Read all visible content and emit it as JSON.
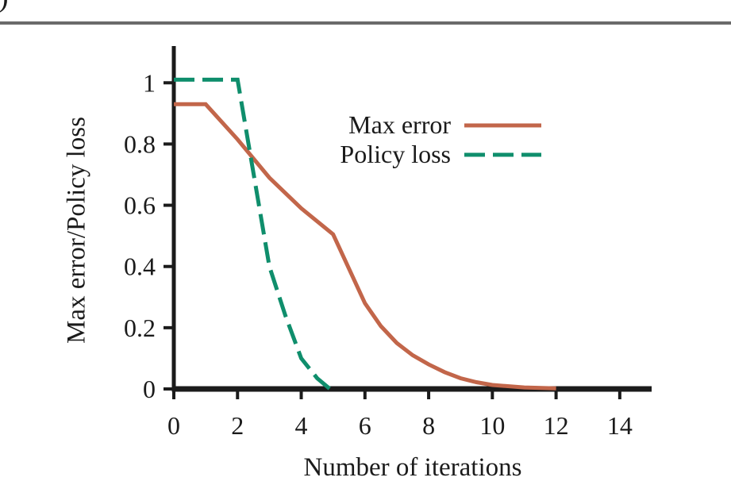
{
  "page": {
    "corner_fragment": ")",
    "colors": {
      "top_rule": "#6a6a6a",
      "axis": "#1b1b1b",
      "text": "#1b1b1b",
      "max_error_line": "#c2664a",
      "policy_loss_line": "#0f8e6c",
      "background": "#ffffff"
    }
  },
  "chart_data": {
    "type": "line",
    "title": "",
    "xlabel": "Number of iterations",
    "ylabel": "Max error/Policy loss",
    "xlim": [
      0,
      15
    ],
    "ylim": [
      0,
      1.12
    ],
    "x_ticks": [
      0,
      2,
      4,
      6,
      8,
      10,
      12,
      14
    ],
    "y_ticks": [
      0,
      0.2,
      0.4,
      0.6,
      0.8,
      1
    ],
    "y_tick_labels": [
      "0",
      "0.2",
      "0.4",
      "0.6",
      "0.8",
      "1"
    ],
    "grid": false,
    "legend_position": "upper-right-inside",
    "series": [
      {
        "name": "Max error",
        "style": "solid",
        "color": "#c2664a",
        "points": [
          [
            0,
            0.93
          ],
          [
            1,
            0.93
          ],
          [
            2,
            0.815
          ],
          [
            3,
            0.69
          ],
          [
            4,
            0.59
          ],
          [
            5,
            0.505
          ],
          [
            6,
            0.28
          ],
          [
            6.5,
            0.205
          ],
          [
            7,
            0.15
          ],
          [
            7.5,
            0.11
          ],
          [
            8,
            0.08
          ],
          [
            8.5,
            0.055
          ],
          [
            9,
            0.035
          ],
          [
            9.5,
            0.022
          ],
          [
            10,
            0.013
          ],
          [
            11,
            0.005
          ],
          [
            12,
            0.002
          ]
        ]
      },
      {
        "name": "Policy loss",
        "style": "dashed",
        "color": "#0f8e6c",
        "points": [
          [
            0,
            1.01
          ],
          [
            1,
            1.01
          ],
          [
            2,
            1.01
          ],
          [
            3,
            0.4
          ],
          [
            3.5,
            0.24
          ],
          [
            4,
            0.1
          ],
          [
            4.5,
            0.035
          ],
          [
            4.9,
            0
          ]
        ]
      }
    ]
  }
}
